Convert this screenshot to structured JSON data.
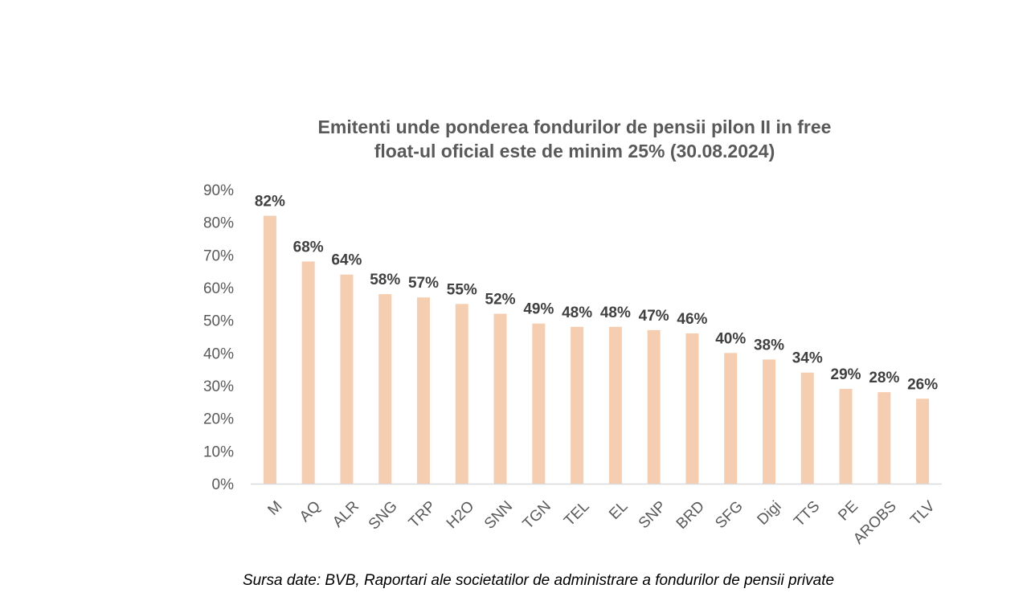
{
  "chart_data": {
    "type": "bar",
    "title_lines": [
      "Emitenti unde ponderea fondurilor de pensii pilon II in free",
      "float-ul oficial este de minim 25% (30.08.2024)"
    ],
    "categories": [
      "M",
      "AQ",
      "ALR",
      "SNG",
      "TRP",
      "H2O",
      "SNN",
      "TGN",
      "TEL",
      "EL",
      "SNP",
      "BRD",
      "SFG",
      "Digi",
      "TTS",
      "PE",
      "AROBS",
      "TLV"
    ],
    "values": [
      82,
      68,
      64,
      58,
      57,
      55,
      52,
      49,
      48,
      48,
      47,
      46,
      40,
      38,
      34,
      29,
      28,
      26
    ],
    "data_labels": [
      "82%",
      "68%",
      "64%",
      "58%",
      "57%",
      "55%",
      "52%",
      "49%",
      "48%",
      "48%",
      "47%",
      "46%",
      "40%",
      "38%",
      "34%",
      "29%",
      "28%",
      "26%"
    ],
    "y_ticks": [
      0,
      10,
      20,
      30,
      40,
      50,
      60,
      70,
      80,
      90
    ],
    "y_tick_labels": [
      "0%",
      "10%",
      "20%",
      "30%",
      "40%",
      "50%",
      "60%",
      "70%",
      "80%",
      "90%"
    ],
    "ylim": [
      0,
      90
    ],
    "grid": false,
    "legend": "none",
    "bar_color": "#f5cdb0"
  },
  "source": "Sursa date: BVB,  Raportari ale societatilor de administrare a fondurilor de pensii private"
}
